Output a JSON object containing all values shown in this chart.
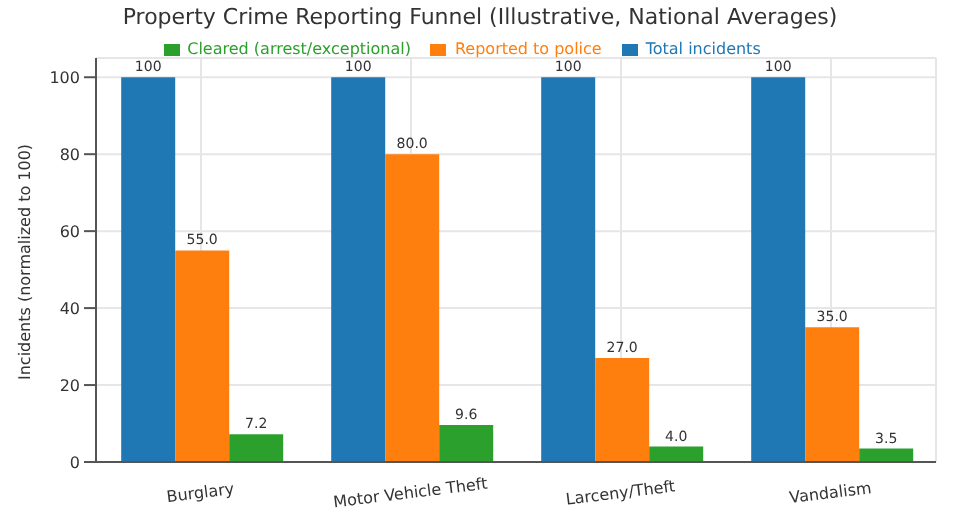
{
  "chart_data": {
    "type": "bar",
    "title": "Property Crime Reporting Funnel (Illustrative, National Averages)",
    "ylabel": "Incidents (normalized to 100)",
    "categories": [
      "Burglary",
      "Motor Vehicle Theft",
      "Larceny/Theft",
      "Vandalism"
    ],
    "series": [
      {
        "name": "Total incidents",
        "color": "#1f77b4",
        "values": [
          100,
          100,
          100,
          100
        ],
        "value_labels": [
          "100",
          "100",
          "100",
          "100"
        ]
      },
      {
        "name": "Reported to police",
        "color": "#ff7f0e",
        "values": [
          55,
          80,
          27,
          35
        ],
        "value_labels": [
          "55.0",
          "80.0",
          "27.0",
          "35.0"
        ]
      },
      {
        "name": "Cleared (arrest/exceptional)",
        "color": "#2ca02c",
        "values": [
          7.2,
          9.6,
          4,
          3.5
        ],
        "value_labels": [
          "7.2",
          "9.6",
          "4.0",
          "3.5"
        ]
      }
    ],
    "ylim": [
      0,
      105
    ],
    "yticks": [
      0,
      20,
      40,
      60,
      80,
      100
    ],
    "grid": true,
    "legend": "top"
  }
}
